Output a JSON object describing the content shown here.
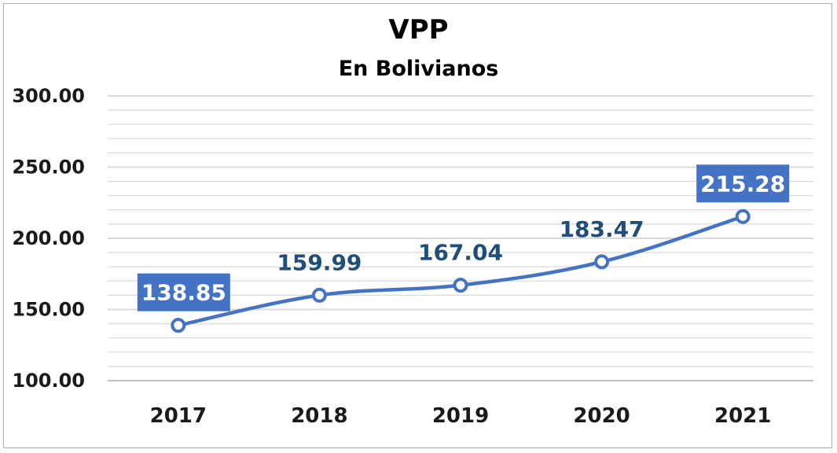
{
  "chart_data": {
    "type": "line",
    "title": "VPP",
    "subtitle": "En Bolivianos",
    "xlabel": "",
    "ylabel": "",
    "categories": [
      "2017",
      "2018",
      "2019",
      "2020",
      "2021"
    ],
    "series": [
      {
        "values": [
          138.85,
          159.99,
          167.04,
          183.47,
          215.28
        ],
        "labels": [
          "138.85",
          "159.99",
          "167.04",
          "183.47",
          "215.28"
        ],
        "color": "#4472c4",
        "boxed_labels": [
          true,
          false,
          false,
          false,
          true
        ]
      }
    ],
    "ylim": [
      100,
      300
    ],
    "yticks": [
      "100.00",
      "150.00",
      "200.00",
      "250.00",
      "300.00"
    ],
    "ytick_values": [
      100,
      150,
      200,
      250,
      300
    ],
    "minor_grid_step": 10,
    "grid": true,
    "legend": "none",
    "colors": {
      "line": "#4472c4",
      "label_text": "#1f4e79",
      "label_box": "#4472c4",
      "label_box_text": "#ffffff",
      "grid": "#d9d9d9"
    }
  }
}
